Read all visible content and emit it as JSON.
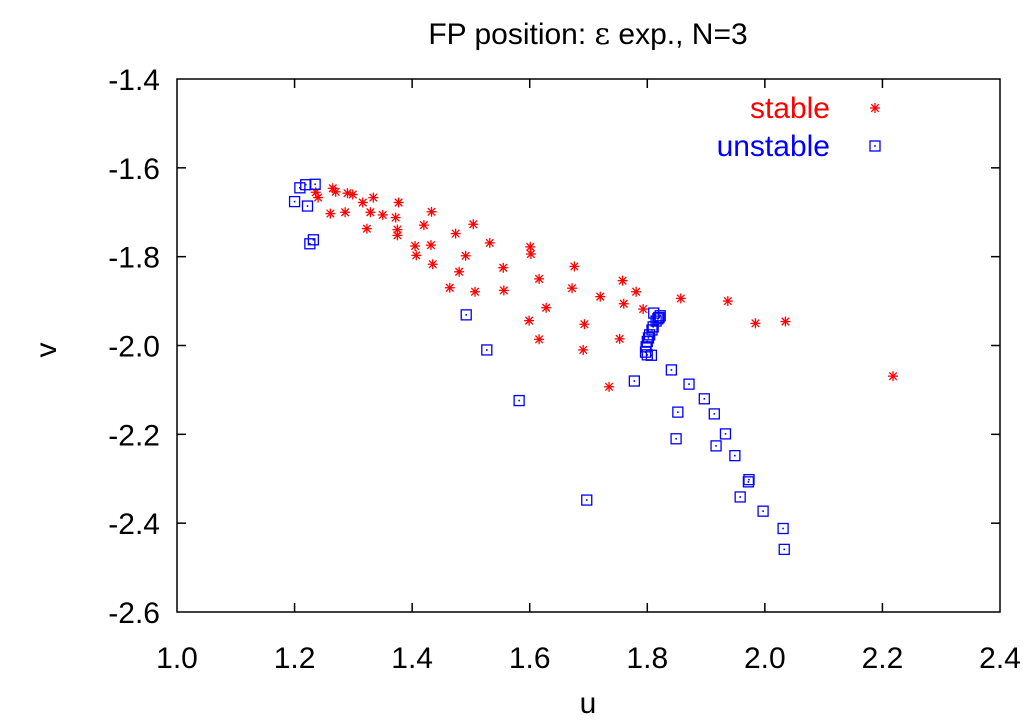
{
  "chart_data": {
    "type": "scatter",
    "title_prefix": "FP position: ",
    "title_symbol": "ε",
    "title_suffix": " exp., N=3",
    "xlabel": "u",
    "ylabel": "v",
    "xlim": [
      1.0,
      2.4
    ],
    "ylim": [
      -2.6,
      -1.4
    ],
    "xticks": [
      "1.0",
      "1.2",
      "1.4",
      "1.6",
      "1.8",
      "2.0",
      "2.2",
      "2.4"
    ],
    "yticks": [
      "-1.4",
      "-1.6",
      "-1.8",
      "-2.0",
      "-2.2",
      "-2.4",
      "-2.6"
    ],
    "grid": false,
    "legend_position": "top-right",
    "series": [
      {
        "name": "stable",
        "color": "#ff0000",
        "marker": "asterisk",
        "points": [
          [
            1.236,
            -1.655
          ],
          [
            1.24,
            -1.667
          ],
          [
            1.261,
            -1.703
          ],
          [
            1.265,
            -1.646
          ],
          [
            1.27,
            -1.654
          ],
          [
            1.286,
            -1.7
          ],
          [
            1.29,
            -1.657
          ],
          [
            1.299,
            -1.66
          ],
          [
            1.316,
            -1.678
          ],
          [
            1.323,
            -1.737
          ],
          [
            1.329,
            -1.7
          ],
          [
            1.334,
            -1.667
          ],
          [
            1.35,
            -1.706
          ],
          [
            1.372,
            -1.712
          ],
          [
            1.375,
            -1.739
          ],
          [
            1.375,
            -1.752
          ],
          [
            1.377,
            -1.678
          ],
          [
            1.405,
            -1.776
          ],
          [
            1.407,
            -1.797
          ],
          [
            1.42,
            -1.729
          ],
          [
            1.432,
            -1.774
          ],
          [
            1.433,
            -1.699
          ],
          [
            1.435,
            -1.817
          ],
          [
            1.464,
            -1.87
          ],
          [
            1.474,
            -1.748
          ],
          [
            1.48,
            -1.834
          ],
          [
            1.491,
            -1.798
          ],
          [
            1.504,
            -1.727
          ],
          [
            1.507,
            -1.879
          ],
          [
            1.532,
            -1.769
          ],
          [
            1.555,
            -1.825
          ],
          [
            1.556,
            -1.876
          ],
          [
            1.599,
            -1.944
          ],
          [
            1.601,
            -1.778
          ],
          [
            1.602,
            -1.794
          ],
          [
            1.616,
            -1.986
          ],
          [
            1.616,
            -1.85
          ],
          [
            1.628,
            -1.915
          ],
          [
            1.672,
            -1.871
          ],
          [
            1.676,
            -1.822
          ],
          [
            1.691,
            -2.01
          ],
          [
            1.693,
            -1.952
          ],
          [
            1.72,
            -1.89
          ],
          [
            1.735,
            -2.093
          ],
          [
            1.753,
            -1.985
          ],
          [
            1.758,
            -1.854
          ],
          [
            1.76,
            -1.906
          ],
          [
            1.781,
            -1.879
          ],
          [
            1.793,
            -1.918
          ],
          [
            1.857,
            -1.894
          ],
          [
            1.937,
            -1.9
          ],
          [
            1.984,
            -1.95
          ],
          [
            2.035,
            -1.946
          ],
          [
            2.218,
            -2.069
          ]
        ]
      },
      {
        "name": "unstable",
        "color": "#0000ff",
        "marker": "square",
        "points": [
          [
            1.2,
            -1.676
          ],
          [
            1.209,
            -1.645
          ],
          [
            1.219,
            -1.638
          ],
          [
            1.222,
            -1.686
          ],
          [
            1.226,
            -1.771
          ],
          [
            1.232,
            -1.762
          ],
          [
            1.235,
            -1.637
          ],
          [
            1.492,
            -1.931
          ],
          [
            1.527,
            -2.01
          ],
          [
            1.582,
            -2.124
          ],
          [
            1.697,
            -2.348
          ],
          [
            1.778,
            -2.08
          ],
          [
            1.797,
            -2.015
          ],
          [
            1.798,
            -2.003
          ],
          [
            1.8,
            -1.991
          ],
          [
            1.8,
            -2.021
          ],
          [
            1.802,
            -1.983
          ],
          [
            1.804,
            -1.976
          ],
          [
            1.807,
            -2.022
          ],
          [
            1.808,
            -1.965
          ],
          [
            1.81,
            -1.958
          ],
          [
            1.811,
            -1.927
          ],
          [
            1.815,
            -1.945
          ],
          [
            1.818,
            -1.94
          ],
          [
            1.82,
            -1.937
          ],
          [
            1.822,
            -1.933
          ],
          [
            1.841,
            -2.055
          ],
          [
            1.849,
            -2.21
          ],
          [
            1.852,
            -2.15
          ],
          [
            1.871,
            -2.087
          ],
          [
            1.897,
            -2.12
          ],
          [
            1.914,
            -2.154
          ],
          [
            1.917,
            -2.226
          ],
          [
            1.933,
            -2.199
          ],
          [
            1.949,
            -2.248
          ],
          [
            1.958,
            -2.341
          ],
          [
            1.972,
            -2.307
          ],
          [
            1.973,
            -2.302
          ],
          [
            1.997,
            -2.373
          ],
          [
            2.031,
            -2.412
          ],
          [
            2.033,
            -2.459
          ]
        ]
      }
    ]
  }
}
